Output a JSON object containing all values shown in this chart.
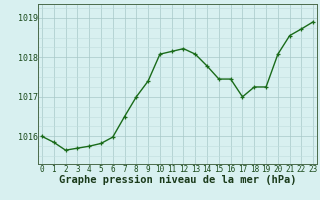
{
  "hours": [
    0,
    1,
    2,
    3,
    4,
    5,
    6,
    7,
    8,
    9,
    10,
    11,
    12,
    13,
    14,
    15,
    16,
    17,
    18,
    19,
    20,
    21,
    22,
    23
  ],
  "pressure": [
    1016.0,
    1015.85,
    1015.65,
    1015.7,
    1015.75,
    1015.82,
    1015.98,
    1016.5,
    1017.0,
    1017.4,
    1018.08,
    1018.15,
    1018.22,
    1018.08,
    1017.78,
    1017.45,
    1017.45,
    1017.0,
    1017.25,
    1017.25,
    1018.08,
    1018.55,
    1018.72,
    1018.9
  ],
  "line_color": "#1a6b1a",
  "marker_color": "#1a6b1a",
  "bg_color": "#d8f0f0",
  "grid_color_major": "#a8c8c8",
  "grid_color_minor": "#c0dede",
  "xlabel": "Graphe pression niveau de la mer (hPa)",
  "xlabel_fontsize": 7.5,
  "ylabel_ticks": [
    1016,
    1017,
    1018,
    1019
  ],
  "ylim": [
    1015.3,
    1019.35
  ],
  "xlim": [
    -0.3,
    23.3
  ],
  "tick_fontsize": 5.5
}
